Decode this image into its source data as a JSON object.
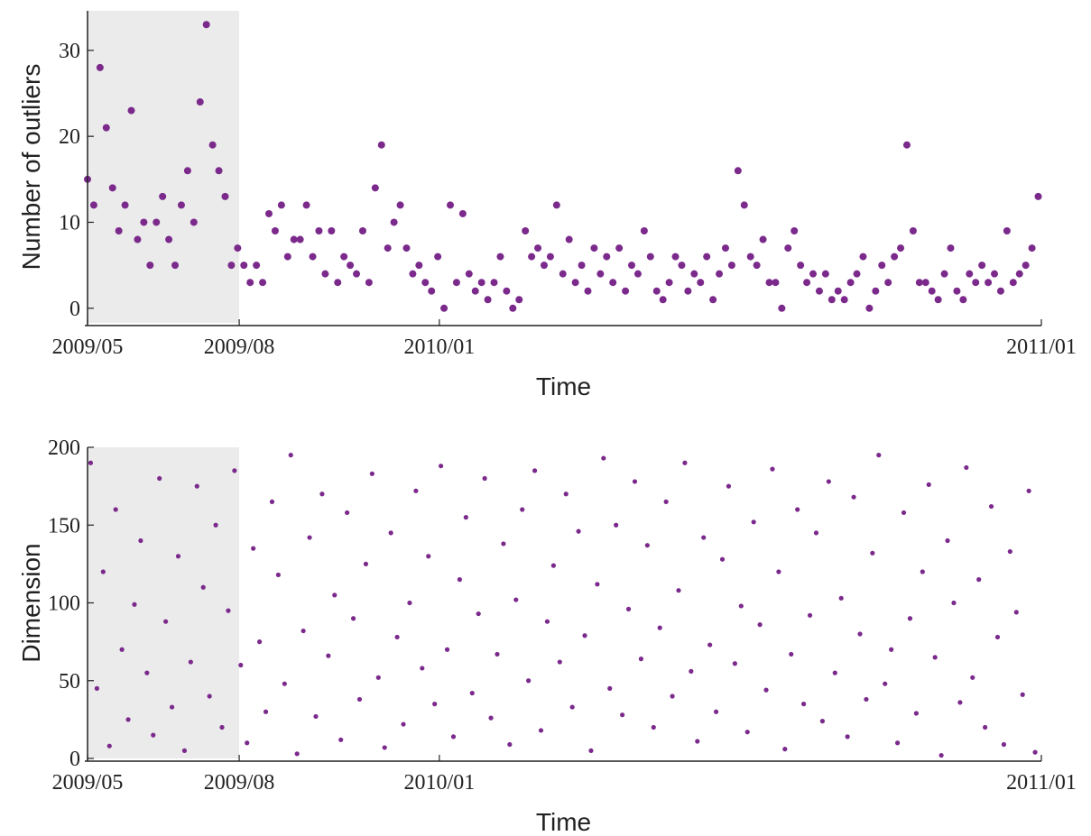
{
  "chart_data": [
    {
      "type": "scatter",
      "x_label": "Time",
      "y_label": "Number of outliers",
      "color": "#7b2a8c",
      "shade_color": "#ebebeb",
      "shaded_region": [
        0,
        97
      ],
      "xlim": [
        0,
        610
      ],
      "ylim": [
        -1.7,
        34.6
      ],
      "xticks": [
        {
          "value": 0,
          "label": "2009/05"
        },
        {
          "value": 97,
          "label": "2009/08"
        },
        {
          "value": 225,
          "label": "2010/01"
        },
        {
          "value": 610,
          "label": "2011/01"
        }
      ],
      "yticks": [
        0,
        10,
        20,
        30
      ],
      "x": [
        0,
        4,
        8,
        12,
        16,
        20,
        24,
        28,
        32,
        36,
        40,
        44,
        48,
        52,
        56,
        60,
        64,
        68,
        72,
        76,
        80,
        84,
        88,
        92,
        96,
        100,
        104,
        108,
        112,
        116,
        120,
        124,
        128,
        132,
        136,
        140,
        144,
        148,
        152,
        156,
        160,
        164,
        168,
        172,
        176,
        180,
        184,
        188,
        192,
        196,
        200,
        204,
        208,
        212,
        216,
        220,
        224,
        228,
        232,
        236,
        240,
        244,
        248,
        252,
        256,
        260,
        264,
        268,
        272,
        276,
        280,
        284,
        288,
        292,
        296,
        300,
        304,
        308,
        312,
        316,
        320,
        324,
        328,
        332,
        336,
        340,
        344,
        348,
        352,
        356,
        360,
        364,
        368,
        372,
        376,
        380,
        384,
        388,
        392,
        396,
        400,
        404,
        408,
        412,
        416,
        420,
        424,
        428,
        432,
        436,
        440,
        444,
        448,
        452,
        456,
        460,
        464,
        468,
        472,
        476,
        480,
        484,
        488,
        492,
        496,
        500,
        504,
        508,
        512,
        516,
        520,
        524,
        528,
        532,
        536,
        540,
        544,
        548,
        552,
        556,
        560,
        564,
        568,
        572,
        576,
        580,
        584,
        588,
        592,
        596,
        600,
        604,
        608
      ],
      "values": [
        15,
        12,
        28,
        21,
        14,
        9,
        12,
        23,
        8,
        10,
        5,
        10,
        13,
        8,
        5,
        12,
        16,
        10,
        24,
        33,
        19,
        16,
        13,
        5,
        7,
        5,
        3,
        5,
        3,
        11,
        9,
        12,
        6,
        8,
        8,
        12,
        6,
        9,
        4,
        9,
        3,
        6,
        5,
        4,
        9,
        3,
        14,
        19,
        7,
        10,
        12,
        7,
        4,
        5,
        3,
        2,
        6,
        0,
        12,
        3,
        11,
        4,
        2,
        3,
        1,
        3,
        6,
        2,
        0,
        1,
        9,
        6,
        7,
        5,
        6,
        12,
        4,
        8,
        3,
        5,
        2,
        7,
        4,
        6,
        3,
        7,
        2,
        5,
        4,
        9,
        6,
        2,
        1,
        3,
        6,
        5,
        2,
        4,
        3,
        6,
        1,
        4,
        7,
        5,
        16,
        12,
        6,
        5,
        8,
        3,
        3,
        0,
        7,
        9,
        5,
        3,
        4,
        2,
        4,
        1,
        2,
        1,
        3,
        4,
        6,
        0,
        2,
        5,
        3,
        6,
        7,
        19,
        9,
        3,
        3,
        2,
        1,
        4,
        7,
        2,
        1,
        4,
        3,
        5,
        3,
        4,
        2,
        9,
        3,
        4,
        5,
        7,
        13
      ]
    },
    {
      "type": "scatter",
      "x_label": "Time",
      "y_label": "Dimension",
      "color": "#7b2a8c",
      "shade_color": "#ebebeb",
      "shaded_region": [
        0,
        97
      ],
      "xlim": [
        0,
        610
      ],
      "ylim": [
        0,
        200
      ],
      "xticks": [
        {
          "value": 0,
          "label": "2009/05"
        },
        {
          "value": 97,
          "label": "2009/08"
        },
        {
          "value": 225,
          "label": "2010/01"
        },
        {
          "value": 610,
          "label": "2011/01"
        }
      ],
      "yticks": [
        0,
        50,
        100,
        150,
        200
      ],
      "x": [
        2,
        6,
        10,
        14,
        18,
        22,
        26,
        30,
        34,
        38,
        42,
        46,
        50,
        54,
        58,
        62,
        66,
        70,
        74,
        78,
        82,
        86,
        90,
        94,
        98,
        102,
        106,
        110,
        114,
        118,
        122,
        126,
        130,
        134,
        138,
        142,
        146,
        150,
        154,
        158,
        162,
        166,
        170,
        174,
        178,
        182,
        186,
        190,
        194,
        198,
        202,
        206,
        210,
        214,
        218,
        222,
        226,
        230,
        234,
        238,
        242,
        246,
        250,
        254,
        258,
        262,
        266,
        270,
        274,
        278,
        282,
        286,
        290,
        294,
        298,
        302,
        306,
        310,
        314,
        318,
        322,
        326,
        330,
        334,
        338,
        342,
        346,
        350,
        354,
        358,
        362,
        366,
        370,
        374,
        378,
        382,
        386,
        390,
        394,
        398,
        402,
        406,
        410,
        414,
        418,
        422,
        426,
        430,
        434,
        438,
        442,
        446,
        450,
        454,
        458,
        462,
        466,
        470,
        474,
        478,
        482,
        486,
        490,
        494,
        498,
        502,
        506,
        510,
        514,
        518,
        522,
        526,
        530,
        534,
        538,
        542,
        546,
        550,
        554,
        558,
        562,
        566,
        570,
        574,
        578,
        582,
        586,
        590,
        594,
        598,
        602,
        606
      ],
      "values": [
        190,
        45,
        120,
        8,
        160,
        70,
        25,
        99,
        140,
        55,
        15,
        180,
        88,
        33,
        130,
        5,
        62,
        175,
        110,
        40,
        150,
        20,
        95,
        185,
        60,
        10,
        135,
        75,
        30,
        165,
        118,
        48,
        195,
        3,
        82,
        142,
        27,
        170,
        66,
        105,
        12,
        158,
        90,
        38,
        125,
        183,
        52,
        7,
        145,
        78,
        22,
        100,
        172,
        58,
        130,
        35,
        188,
        70,
        14,
        115,
        155,
        42,
        93,
        180,
        26,
        67,
        138,
        9,
        102,
        160,
        50,
        185,
        18,
        88,
        124,
        62,
        170,
        33,
        146,
        79,
        5,
        112,
        193,
        45,
        150,
        28,
        96,
        178,
        64,
        137,
        20,
        84,
        165,
        40,
        108,
        190,
        56,
        11,
        142,
        73,
        30,
        128,
        175,
        61,
        98,
        17,
        152,
        86,
        44,
        186,
        120,
        6,
        67,
        160,
        35,
        92,
        145,
        24,
        178,
        55,
        103,
        14,
        168,
        80,
        38,
        132,
        195,
        48,
        70,
        10,
        158,
        90,
        29,
        120,
        176,
        65,
        2,
        140,
        100,
        36,
        187,
        52,
        115,
        20,
        162,
        78,
        9,
        133,
        94,
        41,
        172,
        4
      ]
    }
  ]
}
